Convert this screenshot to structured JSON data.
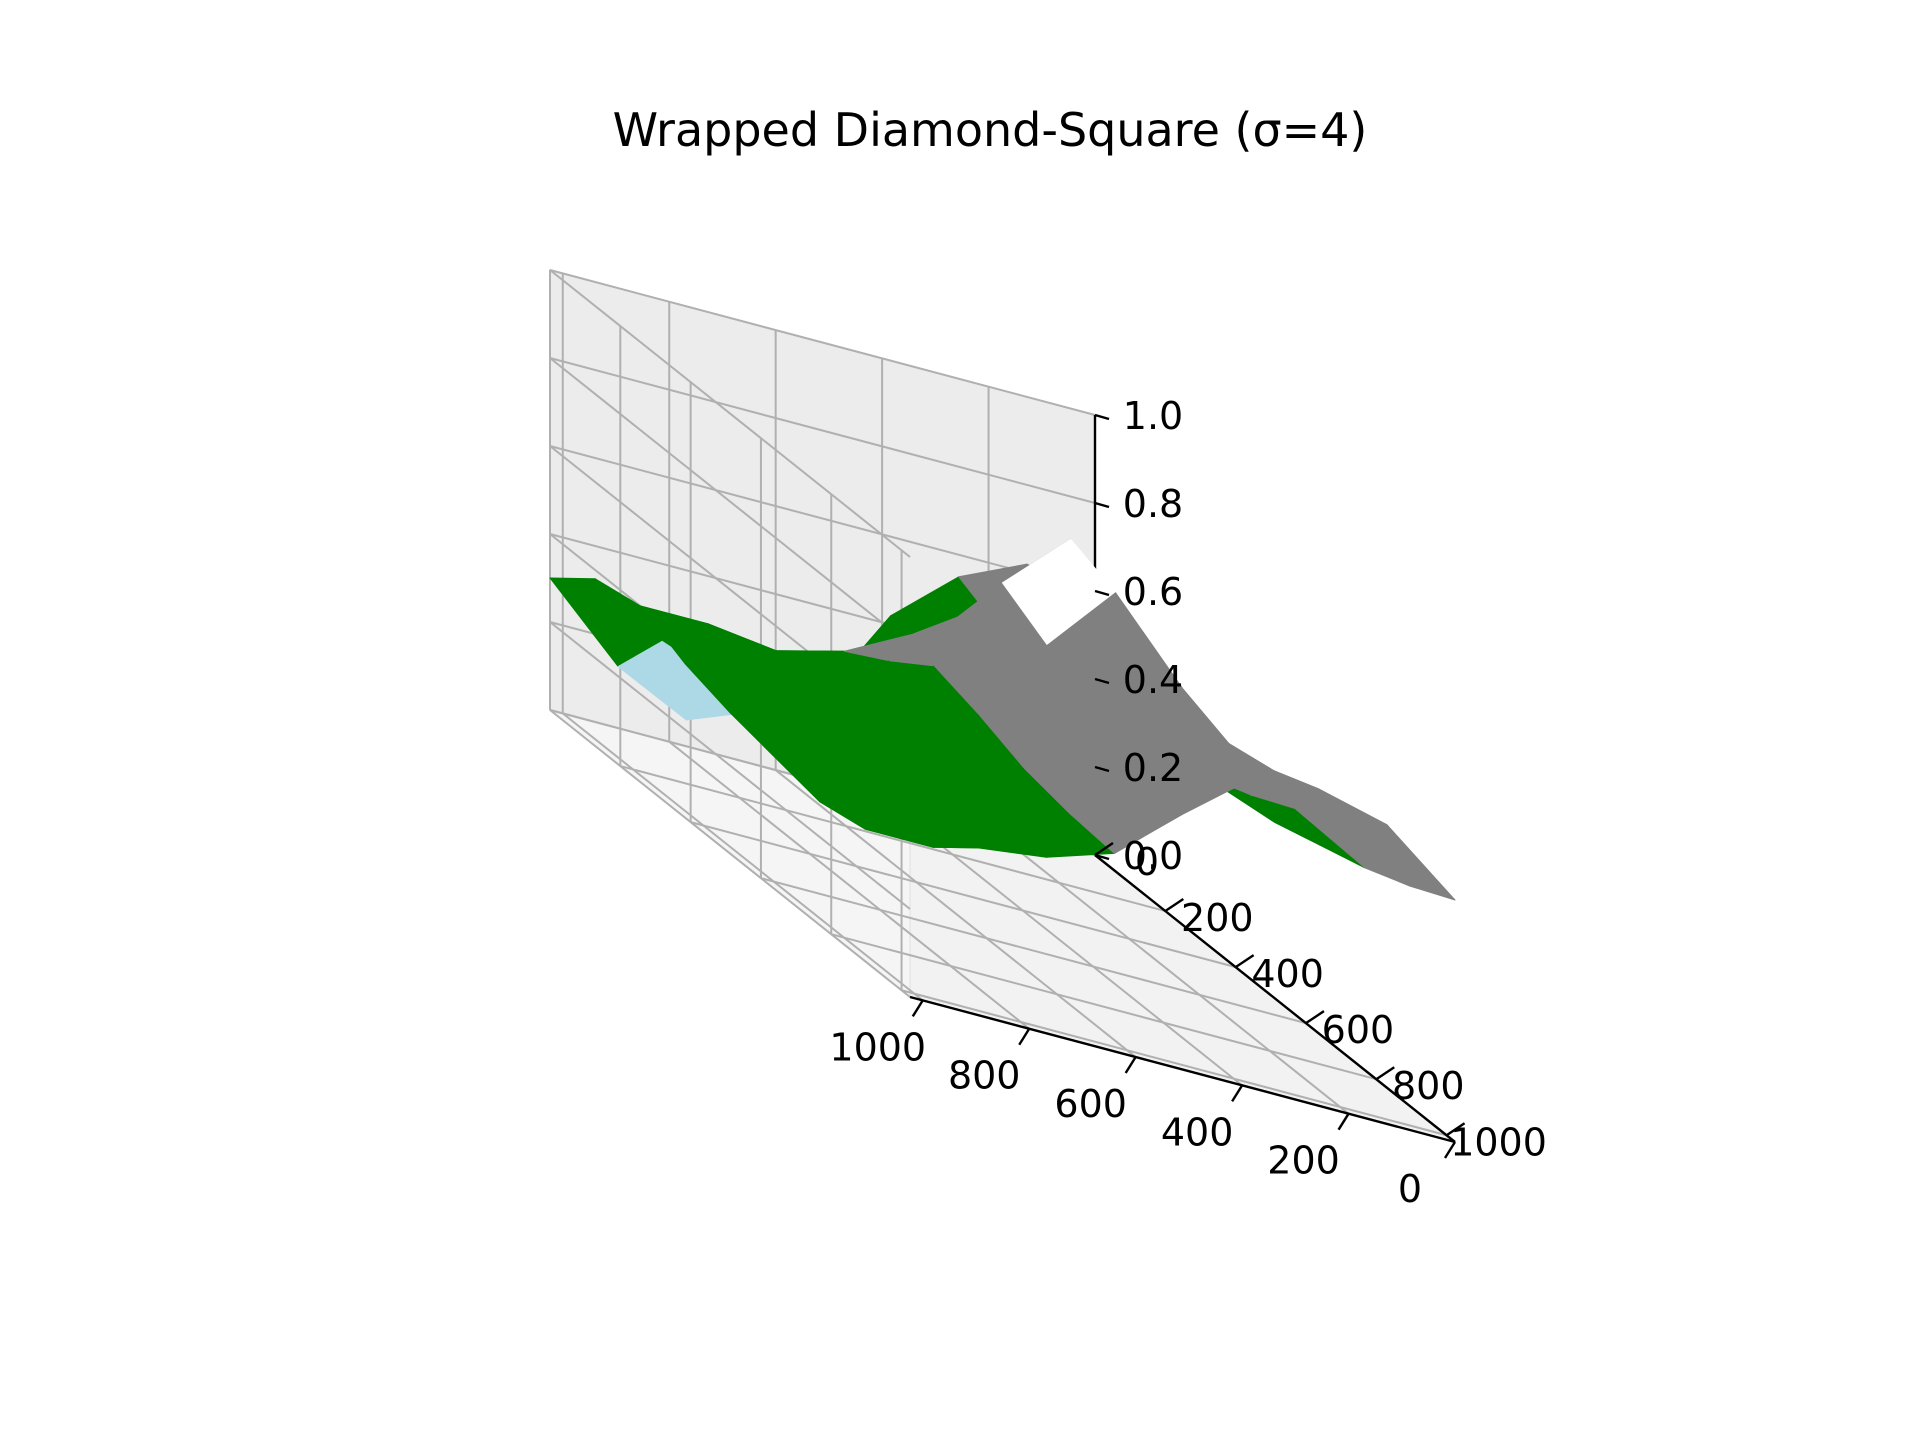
{
  "chart_data": {
    "type": "surface3d",
    "title": "Wrapped Diamond-Square (σ=4)",
    "xlabel": "",
    "ylabel": "",
    "zlabel": "",
    "x_ticks": [
      "0",
      "200",
      "400",
      "600",
      "800",
      "1000"
    ],
    "y_ticks": [
      "0",
      "200",
      "400",
      "600",
      "800",
      "1000"
    ],
    "z_ticks": [
      "0.0",
      "0.2",
      "0.4",
      "0.6",
      "0.8",
      "1.0"
    ],
    "xlim": [
      0,
      1024
    ],
    "ylim": [
      0,
      1024
    ],
    "zlim": [
      0,
      1
    ],
    "grid": true,
    "legend": "none",
    "surface": {
      "x": [
        0,
        128,
        256,
        384,
        512,
        640,
        768,
        896,
        1024
      ],
      "y": [
        0,
        128,
        256,
        384,
        512,
        640,
        768,
        896,
        1024
      ],
      "z": [
        [
          0.58,
          0.62,
          0.55,
          0.42,
          0.2,
          0.12,
          0.06,
          0.14,
          0.3
        ],
        [
          0.48,
          0.52,
          0.5,
          0.4,
          0.3,
          0.25,
          0.22,
          0.28,
          0.38
        ],
        [
          0.45,
          0.5,
          0.55,
          0.6,
          0.5,
          0.42,
          0.38,
          0.4,
          0.4
        ],
        [
          0.42,
          0.48,
          0.62,
          0.75,
          0.62,
          0.48,
          0.4,
          0.36,
          0.35
        ],
        [
          0.4,
          0.46,
          0.72,
          0.92,
          0.78,
          0.55,
          0.42,
          0.34,
          0.32
        ],
        [
          0.43,
          0.5,
          0.7,
          0.88,
          0.72,
          0.52,
          0.4,
          0.33,
          0.3
        ],
        [
          0.46,
          0.55,
          0.66,
          0.74,
          0.65,
          0.48,
          0.38,
          0.32,
          0.28
        ],
        [
          0.5,
          0.62,
          0.68,
          0.7,
          0.6,
          0.46,
          0.36,
          0.3,
          0.3
        ],
        [
          0.55,
          0.68,
          0.72,
          0.7,
          0.58,
          0.45,
          0.4,
          0.38,
          0.4
        ]
      ]
    },
    "color_bands": [
      {
        "max": 0.1,
        "color": "#0000ff"
      },
      {
        "max": 0.2,
        "color": "#add8e6"
      },
      {
        "max": 0.5,
        "color": "#008000"
      },
      {
        "max": 0.8,
        "color": "#808080"
      },
      {
        "max": 1.0,
        "color": "#ffffff"
      }
    ],
    "pane_colors": [
      "#f2f2f2",
      "#f5f5f5",
      "#ececec"
    ]
  }
}
